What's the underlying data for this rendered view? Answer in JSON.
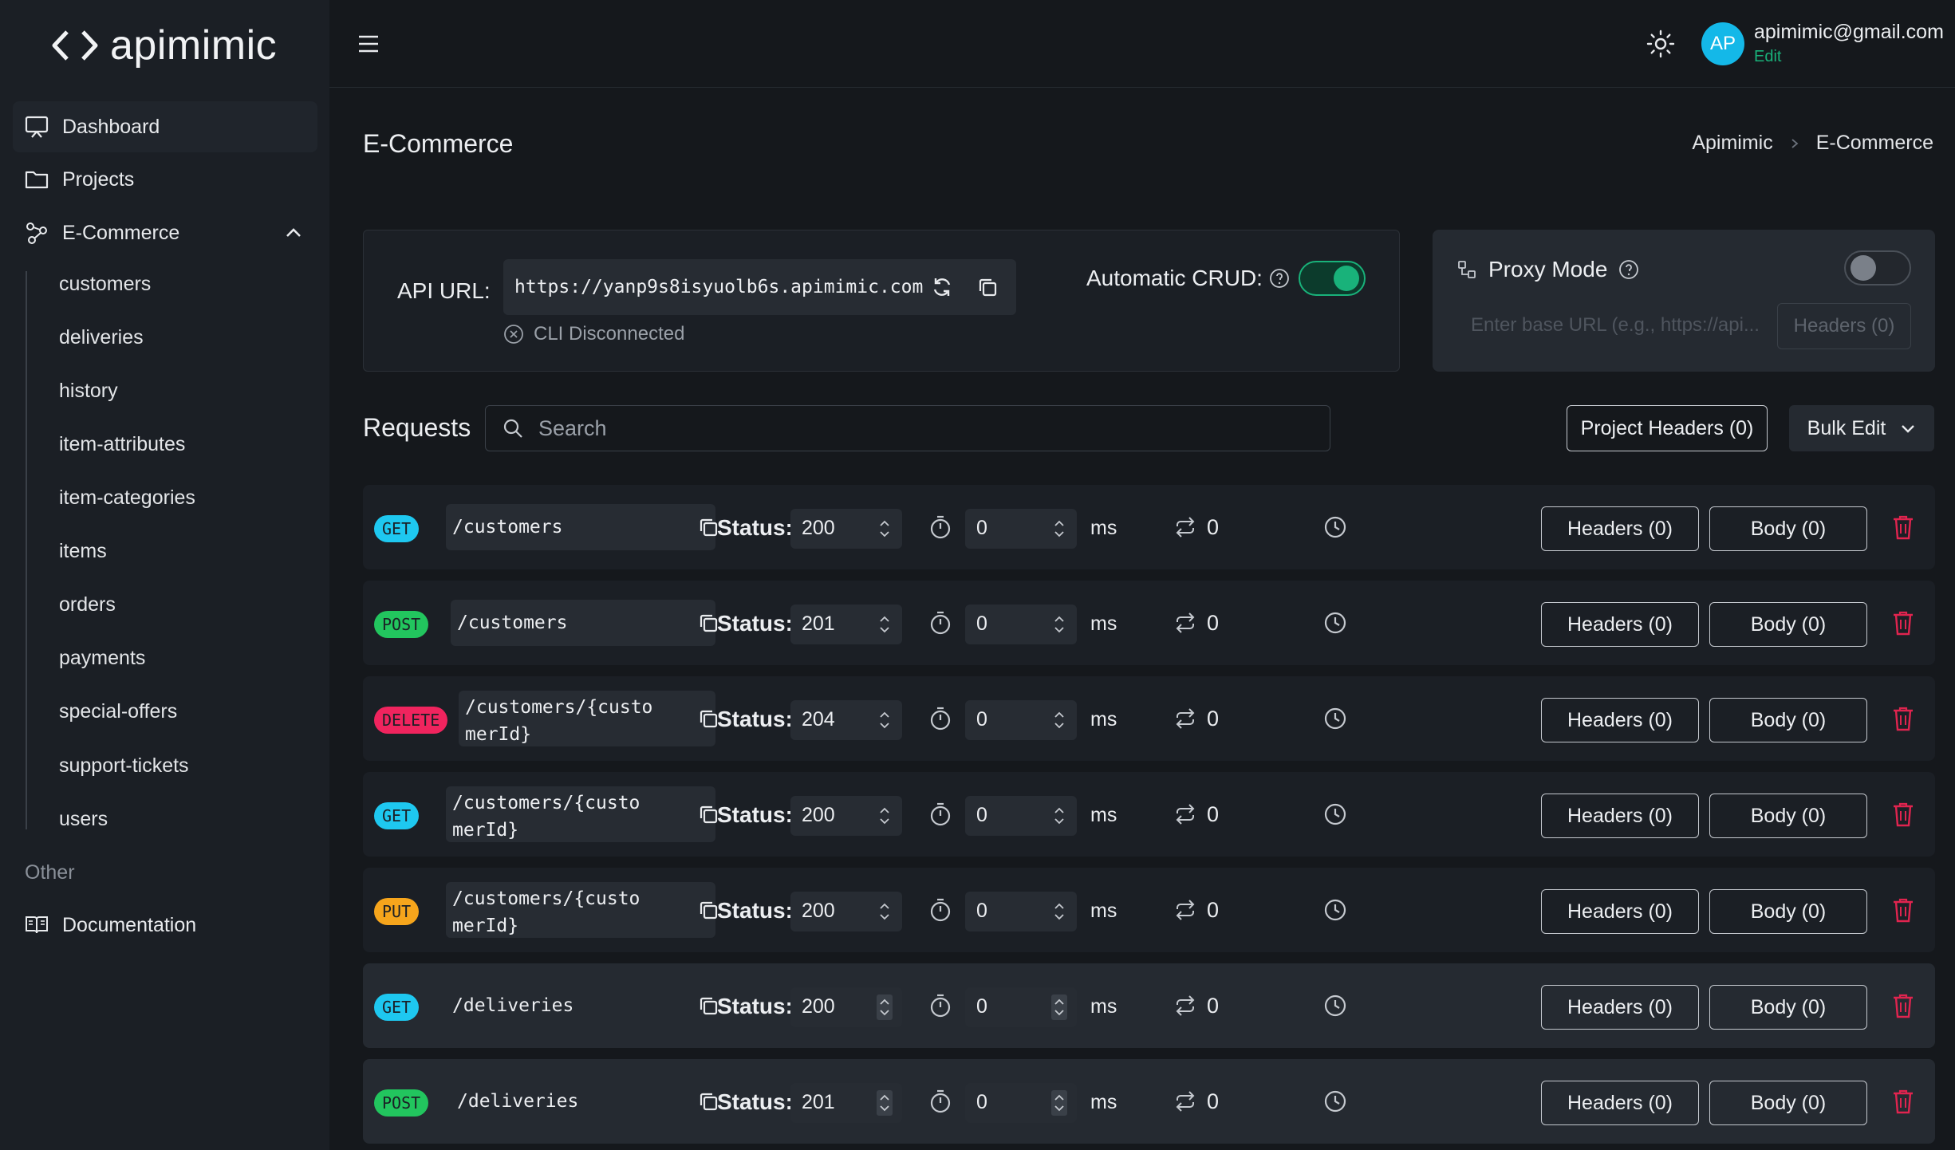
{
  "logo": {
    "text": "apimimic"
  },
  "sidebar": {
    "items": [
      {
        "label": "Dashboard",
        "icon": "presentation-icon"
      },
      {
        "label": "Projects",
        "icon": "folder-icon"
      },
      {
        "label": "E-Commerce",
        "icon": "graph-icon"
      }
    ],
    "subitems": [
      "customers",
      "deliveries",
      "history",
      "item-attributes",
      "item-categories",
      "items",
      "orders",
      "payments",
      "special-offers",
      "support-tickets",
      "users"
    ],
    "section_label": "Other",
    "documentation": "Documentation"
  },
  "header": {
    "user_initials": "AP",
    "user_email": "apimimic@gmail.com",
    "edit_label": "Edit"
  },
  "page": {
    "title": "E-Commerce",
    "breadcrumb": [
      "Apimimic",
      "E-Commerce"
    ]
  },
  "api": {
    "label": "API URL:",
    "url": "https://yanp9s8isyuolb6s.apimimic.com",
    "cli_status": "CLI Disconnected",
    "crud_label": "Automatic CRUD:",
    "crud_enabled": true
  },
  "proxy": {
    "title": "Proxy Mode",
    "enabled": false,
    "placeholder": "Enter base URL (e.g., https://api...",
    "headers_label": "Headers (0)"
  },
  "requests": {
    "label": "Requests",
    "search_placeholder": "Search",
    "project_headers_label": "Project Headers (0)",
    "bulk_edit_label": "Bulk Edit",
    "status_label": "Status:",
    "ms_label": "ms",
    "rows": [
      {
        "method": "GET",
        "path": "/customers",
        "status": "200",
        "delay": "0",
        "hits": "0",
        "headers": "Headers (0)",
        "body": "Body (0)"
      },
      {
        "method": "POST",
        "path": "/customers",
        "status": "201",
        "delay": "0",
        "hits": "0",
        "headers": "Headers (0)",
        "body": "Body (0)"
      },
      {
        "method": "DELETE",
        "path": "/customers/{customerId}",
        "status": "204",
        "delay": "0",
        "hits": "0",
        "headers": "Headers (0)",
        "body": "Body (0)"
      },
      {
        "method": "GET",
        "path": "/customers/{customerId}",
        "status": "200",
        "delay": "0",
        "hits": "0",
        "headers": "Headers (0)",
        "body": "Body (0)"
      },
      {
        "method": "PUT",
        "path": "/customers/{customerId}",
        "status": "200",
        "delay": "0",
        "hits": "0",
        "headers": "Headers (0)",
        "body": "Body (0)"
      },
      {
        "method": "GET",
        "path": "/deliveries",
        "status": "200",
        "delay": "0",
        "hits": "0",
        "headers": "Headers (0)",
        "body": "Body (0)"
      },
      {
        "method": "POST",
        "path": "/deliveries",
        "status": "201",
        "delay": "0",
        "hits": "0",
        "headers": "Headers (0)",
        "body": "Body (0)"
      }
    ]
  },
  "colors": {
    "accent_green": "#19b27a",
    "get": "#1ec8f0",
    "post": "#22c55e",
    "delete": "#f0245e",
    "put": "#f6a51c",
    "danger": "#e0244f"
  }
}
